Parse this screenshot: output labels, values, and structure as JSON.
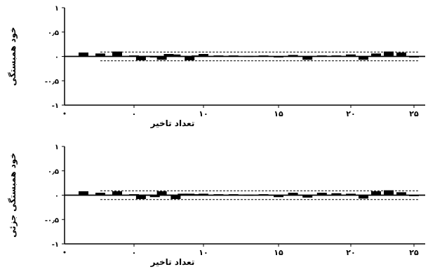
{
  "chart_data": [
    {
      "type": "bar",
      "ylabel": "خود همبستگی",
      "xlabel": "تعداد تاخیر",
      "ylim": [
        -1,
        1
      ],
      "xlim": [
        -4,
        26
      ],
      "yticks": [
        "-۱",
        "-۰٫۵",
        "۰",
        "۰٫۵",
        "۱"
      ],
      "xticks": [
        "۰",
        "۱۰",
        "۱۵",
        "۲۰",
        "۲۵"
      ],
      "x": [
        -3,
        -2,
        -1,
        0,
        1,
        2,
        3,
        4,
        5,
        6,
        7,
        8,
        9,
        10,
        11,
        12,
        13,
        14,
        15,
        16,
        17,
        18,
        19,
        20,
        21,
        22,
        23,
        24,
        25
      ],
      "values": [
        0.08,
        0.06,
        0.1,
        0.02,
        -0.08,
        0.01,
        -0.02,
        -0.07,
        0.05,
        0.04,
        0.01,
        -0.08,
        0.02,
        0.05,
        0.02,
        0.02,
        0.01,
        0.02,
        -0.02,
        0.03,
        -0.07,
        0.02,
        0.02,
        0.04,
        -0.07,
        0.06,
        0.1,
        0.08,
        -0.02
      ],
      "confidence_limits": [
        0.09,
        -0.09
      ]
    },
    {
      "type": "bar",
      "ylabel": "خود همبستگی جزئی",
      "xlabel": "تعداد تاخیر",
      "ylim": [
        -1,
        1
      ],
      "xlim": [
        -4,
        26
      ],
      "yticks": [
        "-۱",
        "-۰٫۵",
        "۰",
        "۰٫۵",
        "۱"
      ],
      "xticks": [
        "۰",
        "۱۰",
        "۱۵",
        "۲۰",
        "۲۵"
      ],
      "x": [
        -3,
        -2,
        -1,
        0,
        1,
        2,
        3,
        4,
        5,
        6,
        7,
        8,
        9,
        10,
        11,
        12,
        13,
        14,
        15,
        16,
        17,
        18,
        19,
        20,
        21,
        22,
        23,
        24,
        25
      ],
      "values": [
        0.08,
        0.05,
        0.08,
        0.02,
        -0.08,
        0.01,
        -0.04,
        0.08,
        0.01,
        -0.08,
        0.03,
        0.03,
        0.02,
        0.03,
        0.02,
        0.02,
        0.01,
        0.02,
        -0.04,
        0.05,
        -0.05,
        0.05,
        0.04,
        0.03,
        -0.07,
        0.08,
        0.1,
        0.06,
        -0.02
      ],
      "confidence_limits": [
        0.09,
        -0.09
      ]
    }
  ]
}
